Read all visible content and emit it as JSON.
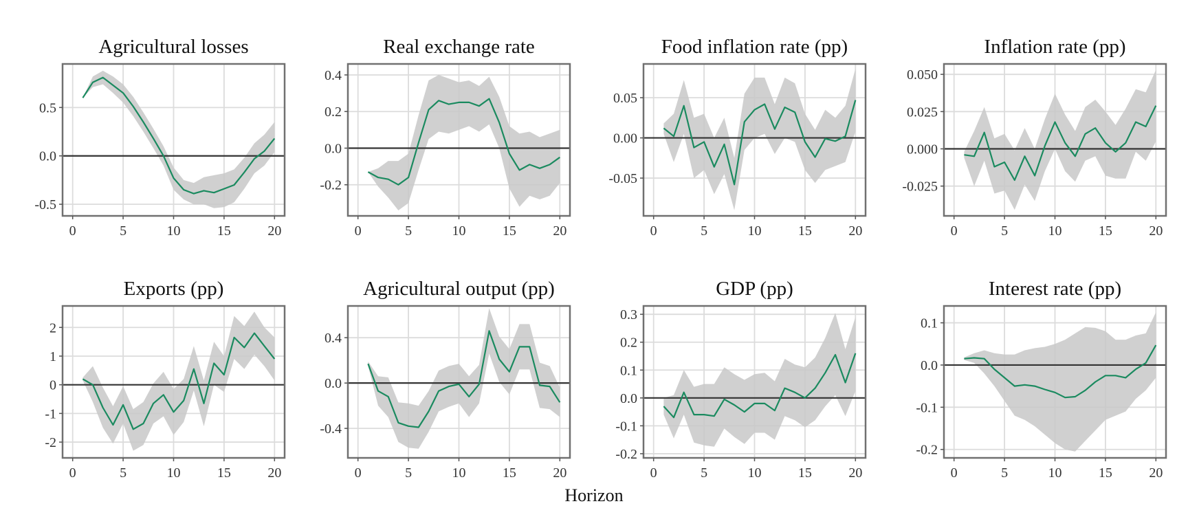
{
  "figure": {
    "xlabel": "Horizon"
  },
  "colors": {
    "line": "#1a8a5f",
    "band": "#c8c8c8",
    "zero": "#333333"
  },
  "chart_data": [
    {
      "type": "line",
      "title": "Agricultural losses",
      "xlim": [
        -1,
        21
      ],
      "xticks": [
        0,
        5,
        10,
        15,
        20
      ],
      "ylim": [
        -0.62,
        0.95
      ],
      "yticks": [
        -0.5,
        0.0,
        0.5
      ],
      "ytick_labels": [
        "-0.5",
        "0.0",
        "0.5"
      ],
      "grid": true,
      "x": [
        1,
        2,
        3,
        4,
        5,
        6,
        7,
        8,
        9,
        10,
        11,
        12,
        13,
        14,
        15,
        16,
        17,
        18,
        19,
        20
      ],
      "y": [
        0.6,
        0.76,
        0.81,
        0.73,
        0.65,
        0.51,
        0.35,
        0.18,
        0.0,
        -0.23,
        -0.35,
        -0.39,
        -0.36,
        -0.38,
        -0.34,
        -0.3,
        -0.17,
        -0.03,
        0.05,
        0.18
      ],
      "lower": [
        0.6,
        0.71,
        0.74,
        0.65,
        0.55,
        0.41,
        0.25,
        0.08,
        -0.1,
        -0.35,
        -0.45,
        -0.5,
        -0.5,
        -0.54,
        -0.53,
        -0.48,
        -0.34,
        -0.18,
        -0.1,
        0.04
      ],
      "upper": [
        0.6,
        0.82,
        0.88,
        0.82,
        0.74,
        0.61,
        0.45,
        0.28,
        0.1,
        -0.12,
        -0.25,
        -0.28,
        -0.22,
        -0.2,
        -0.18,
        -0.14,
        -0.02,
        0.13,
        0.22,
        0.35
      ]
    },
    {
      "type": "line",
      "title": "Real exchange rate",
      "xlim": [
        -1,
        21
      ],
      "xticks": [
        0,
        5,
        10,
        15,
        20
      ],
      "ylim": [
        -0.37,
        0.46
      ],
      "yticks": [
        -0.2,
        0.0,
        0.2,
        0.4
      ],
      "ytick_labels": [
        "-0.2",
        "0.0",
        "0.2",
        "0.4"
      ],
      "grid": true,
      "x": [
        1,
        2,
        3,
        4,
        5,
        6,
        7,
        8,
        9,
        10,
        11,
        12,
        13,
        14,
        15,
        16,
        17,
        18,
        19,
        20
      ],
      "y": [
        -0.13,
        -0.16,
        -0.17,
        -0.2,
        -0.16,
        0.03,
        0.21,
        0.26,
        0.24,
        0.25,
        0.25,
        0.23,
        0.27,
        0.14,
        -0.03,
        -0.12,
        -0.09,
        -0.11,
        -0.09,
        -0.05
      ],
      "lower": [
        -0.13,
        -0.21,
        -0.27,
        -0.34,
        -0.3,
        -0.12,
        0.05,
        0.09,
        0.08,
        0.1,
        0.12,
        0.09,
        0.13,
        0.0,
        -0.22,
        -0.32,
        -0.26,
        -0.28,
        -0.26,
        -0.19
      ],
      "upper": [
        -0.13,
        -0.11,
        -0.07,
        -0.07,
        -0.03,
        0.18,
        0.37,
        0.4,
        0.38,
        0.36,
        0.37,
        0.34,
        0.39,
        0.28,
        0.12,
        0.08,
        0.09,
        0.06,
        0.08,
        0.1
      ]
    },
    {
      "type": "line",
      "title": "Food inflation rate (pp)",
      "xlim": [
        -1,
        21
      ],
      "xticks": [
        0,
        5,
        10,
        15,
        20
      ],
      "ylim": [
        -0.097,
        0.092
      ],
      "yticks": [
        -0.05,
        0.0,
        0.05
      ],
      "ytick_labels": [
        "-0.05",
        "0.00",
        "0.05"
      ],
      "grid": true,
      "x": [
        1,
        2,
        3,
        4,
        5,
        6,
        7,
        8,
        9,
        10,
        11,
        12,
        13,
        14,
        15,
        16,
        17,
        18,
        19,
        20
      ],
      "y": [
        0.012,
        0.002,
        0.04,
        -0.012,
        -0.005,
        -0.036,
        -0.008,
        -0.058,
        0.02,
        0.035,
        0.042,
        0.011,
        0.038,
        0.032,
        -0.005,
        -0.024,
        -0.001,
        -0.004,
        0.002,
        0.047
      ],
      "lower": [
        0.005,
        -0.03,
        0.005,
        -0.05,
        -0.04,
        -0.07,
        -0.045,
        -0.09,
        -0.015,
        0.0,
        0.005,
        -0.02,
        0.0,
        -0.005,
        -0.04,
        -0.056,
        -0.04,
        -0.035,
        -0.03,
        0.008
      ],
      "upper": [
        0.018,
        0.03,
        0.072,
        0.025,
        0.03,
        0.0,
        0.025,
        -0.025,
        0.055,
        0.075,
        0.075,
        0.042,
        0.075,
        0.068,
        0.03,
        0.01,
        0.035,
        0.025,
        0.04,
        0.086
      ]
    },
    {
      "type": "line",
      "title": "Inflation rate (pp)",
      "xlim": [
        -1,
        21
      ],
      "xticks": [
        0,
        5,
        10,
        15,
        20
      ],
      "ylim": [
        -0.045,
        0.057
      ],
      "yticks": [
        -0.025,
        0.0,
        0.025,
        0.05
      ],
      "ytick_labels": [
        "-0.025",
        "0.000",
        "0.025",
        "0.050"
      ],
      "grid": true,
      "x": [
        1,
        2,
        3,
        4,
        5,
        6,
        7,
        8,
        9,
        10,
        11,
        12,
        13,
        14,
        15,
        16,
        17,
        18,
        19,
        20
      ],
      "y": [
        -0.004,
        -0.005,
        0.011,
        -0.012,
        -0.009,
        -0.021,
        -0.005,
        -0.018,
        0.002,
        0.018,
        0.004,
        -0.005,
        0.01,
        0.014,
        0.004,
        -0.002,
        0.004,
        0.018,
        0.015,
        0.029
      ],
      "lower": [
        -0.006,
        -0.025,
        -0.008,
        -0.03,
        -0.028,
        -0.041,
        -0.024,
        -0.035,
        -0.015,
        0.0,
        -0.015,
        -0.022,
        -0.008,
        -0.005,
        -0.018,
        -0.02,
        -0.02,
        -0.002,
        -0.008,
        0.005
      ],
      "upper": [
        -0.002,
        0.012,
        0.028,
        0.007,
        0.01,
        -0.001,
        0.014,
        0.0,
        0.02,
        0.037,
        0.023,
        0.012,
        0.028,
        0.033,
        0.025,
        0.016,
        0.027,
        0.04,
        0.038,
        0.053
      ]
    },
    {
      "type": "line",
      "title": "Exports (pp)",
      "xlim": [
        -1,
        21
      ],
      "xticks": [
        0,
        5,
        10,
        15,
        20
      ],
      "ylim": [
        -2.55,
        2.75
      ],
      "yticks": [
        -2,
        -1,
        0,
        1,
        2
      ],
      "ytick_labels": [
        "-2",
        "-1",
        "0",
        "1",
        "2"
      ],
      "grid": true,
      "x": [
        1,
        2,
        3,
        4,
        5,
        6,
        7,
        8,
        9,
        10,
        11,
        12,
        13,
        14,
        15,
        16,
        17,
        18,
        19,
        20
      ],
      "y": [
        0.2,
        0.0,
        -0.8,
        -1.4,
        -0.7,
        -1.55,
        -1.35,
        -0.65,
        -0.35,
        -0.95,
        -0.55,
        0.55,
        -0.65,
        0.75,
        0.35,
        1.65,
        1.3,
        1.8,
        1.35,
        0.9
      ],
      "lower": [
        0.15,
        -0.6,
        -1.5,
        -2.05,
        -1.35,
        -2.3,
        -2.1,
        -1.35,
        -1.1,
        -1.75,
        -1.3,
        -0.2,
        -1.45,
        0.0,
        -0.25,
        0.9,
        0.55,
        1.05,
        0.65,
        0.15
      ],
      "upper": [
        0.25,
        0.65,
        -0.1,
        -0.75,
        -0.05,
        -0.85,
        -0.6,
        0.05,
        0.45,
        -0.15,
        0.2,
        1.35,
        0.15,
        1.5,
        1.0,
        2.4,
        2.05,
        2.55,
        2.0,
        1.65
      ]
    },
    {
      "type": "line",
      "title": "Agricultural output (pp)",
      "xlim": [
        -1,
        21
      ],
      "xticks": [
        0,
        5,
        10,
        15,
        20
      ],
      "ylim": [
        -0.66,
        0.68
      ],
      "yticks": [
        -0.4,
        0.0,
        0.4
      ],
      "ytick_labels": [
        "-0.4",
        "0.0",
        "0.4"
      ],
      "grid": true,
      "x": [
        1,
        2,
        3,
        4,
        5,
        6,
        7,
        8,
        9,
        10,
        11,
        12,
        13,
        14,
        15,
        16,
        17,
        18,
        19,
        20
      ],
      "y": [
        0.17,
        -0.07,
        -0.12,
        -0.35,
        -0.38,
        -0.39,
        -0.25,
        -0.07,
        -0.03,
        -0.01,
        -0.12,
        -0.01,
        0.46,
        0.21,
        0.1,
        0.32,
        0.32,
        -0.02,
        -0.03,
        -0.17
      ],
      "lower": [
        0.15,
        -0.2,
        -0.3,
        -0.52,
        -0.57,
        -0.58,
        -0.43,
        -0.25,
        -0.21,
        -0.18,
        -0.3,
        -0.18,
        0.26,
        0.01,
        -0.1,
        0.12,
        0.12,
        -0.22,
        -0.23,
        -0.3
      ],
      "upper": [
        0.19,
        0.06,
        0.05,
        -0.17,
        -0.18,
        -0.2,
        -0.07,
        0.11,
        0.15,
        0.17,
        0.06,
        0.16,
        0.66,
        0.41,
        0.3,
        0.52,
        0.52,
        0.18,
        0.15,
        -0.04
      ]
    },
    {
      "type": "line",
      "title": "GDP (pp)",
      "xlim": [
        -1,
        21
      ],
      "xticks": [
        0,
        5,
        10,
        15,
        20
      ],
      "ylim": [
        -0.215,
        0.33
      ],
      "yticks": [
        -0.2,
        -0.1,
        0.0,
        0.1,
        0.2,
        0.3
      ],
      "ytick_labels": [
        "-0.2",
        "-0.1",
        "0.0",
        "0.1",
        "0.2",
        "0.3"
      ],
      "grid": true,
      "x": [
        1,
        2,
        3,
        4,
        5,
        6,
        7,
        8,
        9,
        10,
        11,
        12,
        13,
        14,
        15,
        16,
        17,
        18,
        19,
        20
      ],
      "y": [
        -0.03,
        -0.07,
        0.02,
        -0.06,
        -0.06,
        -0.065,
        -0.005,
        -0.025,
        -0.05,
        -0.02,
        -0.02,
        -0.045,
        0.035,
        0.02,
        0.0,
        0.035,
        0.09,
        0.155,
        0.055,
        0.16
      ],
      "lower": [
        -0.06,
        -0.145,
        -0.06,
        -0.16,
        -0.17,
        -0.175,
        -0.11,
        -0.14,
        -0.165,
        -0.125,
        -0.125,
        -0.15,
        -0.065,
        -0.08,
        -0.105,
        -0.08,
        -0.03,
        0.01,
        -0.065,
        0.025
      ],
      "upper": [
        0.0,
        0.01,
        0.1,
        0.04,
        0.05,
        0.05,
        0.11,
        0.085,
        0.065,
        0.085,
        0.09,
        0.06,
        0.14,
        0.12,
        0.11,
        0.145,
        0.215,
        0.305,
        0.175,
        0.29
      ]
    },
    {
      "type": "line",
      "title": "Interest rate (pp)",
      "xlim": [
        -1,
        21
      ],
      "xticks": [
        0,
        5,
        10,
        15,
        20
      ],
      "ylim": [
        -0.22,
        0.14
      ],
      "yticks": [
        -0.2,
        -0.1,
        0.0,
        0.1
      ],
      "ytick_labels": [
        "-0.2",
        "-0.1",
        "0.0",
        "0.1"
      ],
      "grid": true,
      "x": [
        1,
        2,
        3,
        4,
        5,
        6,
        7,
        8,
        9,
        10,
        11,
        12,
        13,
        14,
        15,
        16,
        17,
        18,
        19,
        20
      ],
      "y": [
        0.015,
        0.017,
        0.015,
        -0.01,
        -0.03,
        -0.05,
        -0.047,
        -0.05,
        -0.058,
        -0.065,
        -0.077,
        -0.075,
        -0.06,
        -0.04,
        -0.025,
        -0.025,
        -0.03,
        -0.01,
        0.005,
        0.047
      ],
      "lower": [
        0.012,
        0.005,
        -0.02,
        -0.05,
        -0.085,
        -0.12,
        -0.13,
        -0.145,
        -0.165,
        -0.185,
        -0.2,
        -0.205,
        -0.18,
        -0.155,
        -0.13,
        -0.12,
        -0.11,
        -0.08,
        -0.06,
        -0.03
      ],
      "upper": [
        0.018,
        0.028,
        0.035,
        0.028,
        0.025,
        0.025,
        0.035,
        0.04,
        0.043,
        0.05,
        0.06,
        0.075,
        0.09,
        0.088,
        0.08,
        0.06,
        0.06,
        0.07,
        0.075,
        0.125
      ]
    }
  ]
}
